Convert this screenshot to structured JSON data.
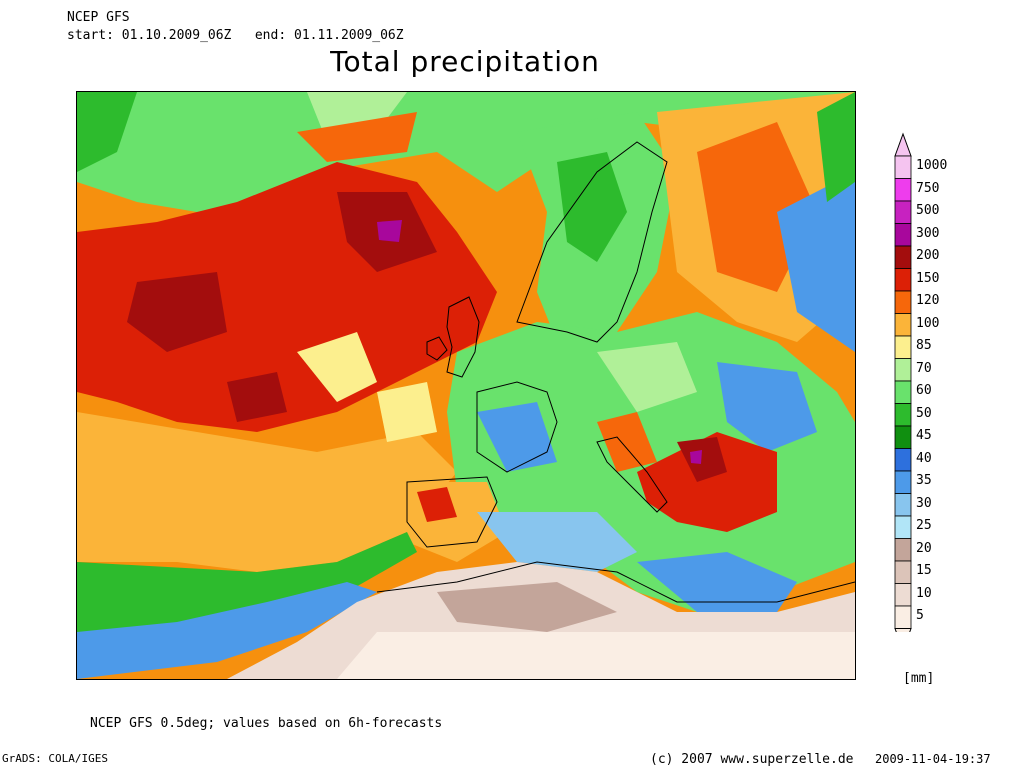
{
  "header": {
    "model": "NCEP GFS",
    "start_label": "start:",
    "start": "01.10.2009_06Z",
    "end_label": "end:",
    "end": "01.11.2009_06Z"
  },
  "title": "Total precipitation",
  "footer": {
    "note": "NCEP GFS 0.5deg; values based on 6h-forecasts",
    "grads": "GrADS: COLA/IGES",
    "copyright": "(c) 2007 www.superzelle.de",
    "timestamp": "2009-11-04-19:37"
  },
  "legend": {
    "unit": "[mm]",
    "levels": [
      {
        "value": "1000",
        "color": "#f5c4f0"
      },
      {
        "value": "750",
        "color": "#ee3ded"
      },
      {
        "value": "500",
        "color": "#c722c0"
      },
      {
        "value": "300",
        "color": "#a8079c"
      },
      {
        "value": "200",
        "color": "#a30d0d"
      },
      {
        "value": "150",
        "color": "#dc2006"
      },
      {
        "value": "120",
        "color": "#f6670b"
      },
      {
        "value": "100",
        "color": "#fbb439"
      },
      {
        "value": "85",
        "color": "#fcef8e"
      },
      {
        "value": "70",
        "color": "#b0f098"
      },
      {
        "value": "60",
        "color": "#69e26c"
      },
      {
        "value": "50",
        "color": "#2dbb2d"
      },
      {
        "value": "45",
        "color": "#108f10"
      },
      {
        "value": "40",
        "color": "#2d70dd"
      },
      {
        "value": "35",
        "color": "#4d9ae9"
      },
      {
        "value": "30",
        "color": "#88c5ee"
      },
      {
        "value": "25",
        "color": "#b1e5f7"
      },
      {
        "value": "20",
        "color": "#c3a59a"
      },
      {
        "value": "15",
        "color": "#dcc4b9"
      },
      {
        "value": "10",
        "color": "#eddcd3"
      },
      {
        "value": "5",
        "color": "#faeee4"
      }
    ]
  }
}
